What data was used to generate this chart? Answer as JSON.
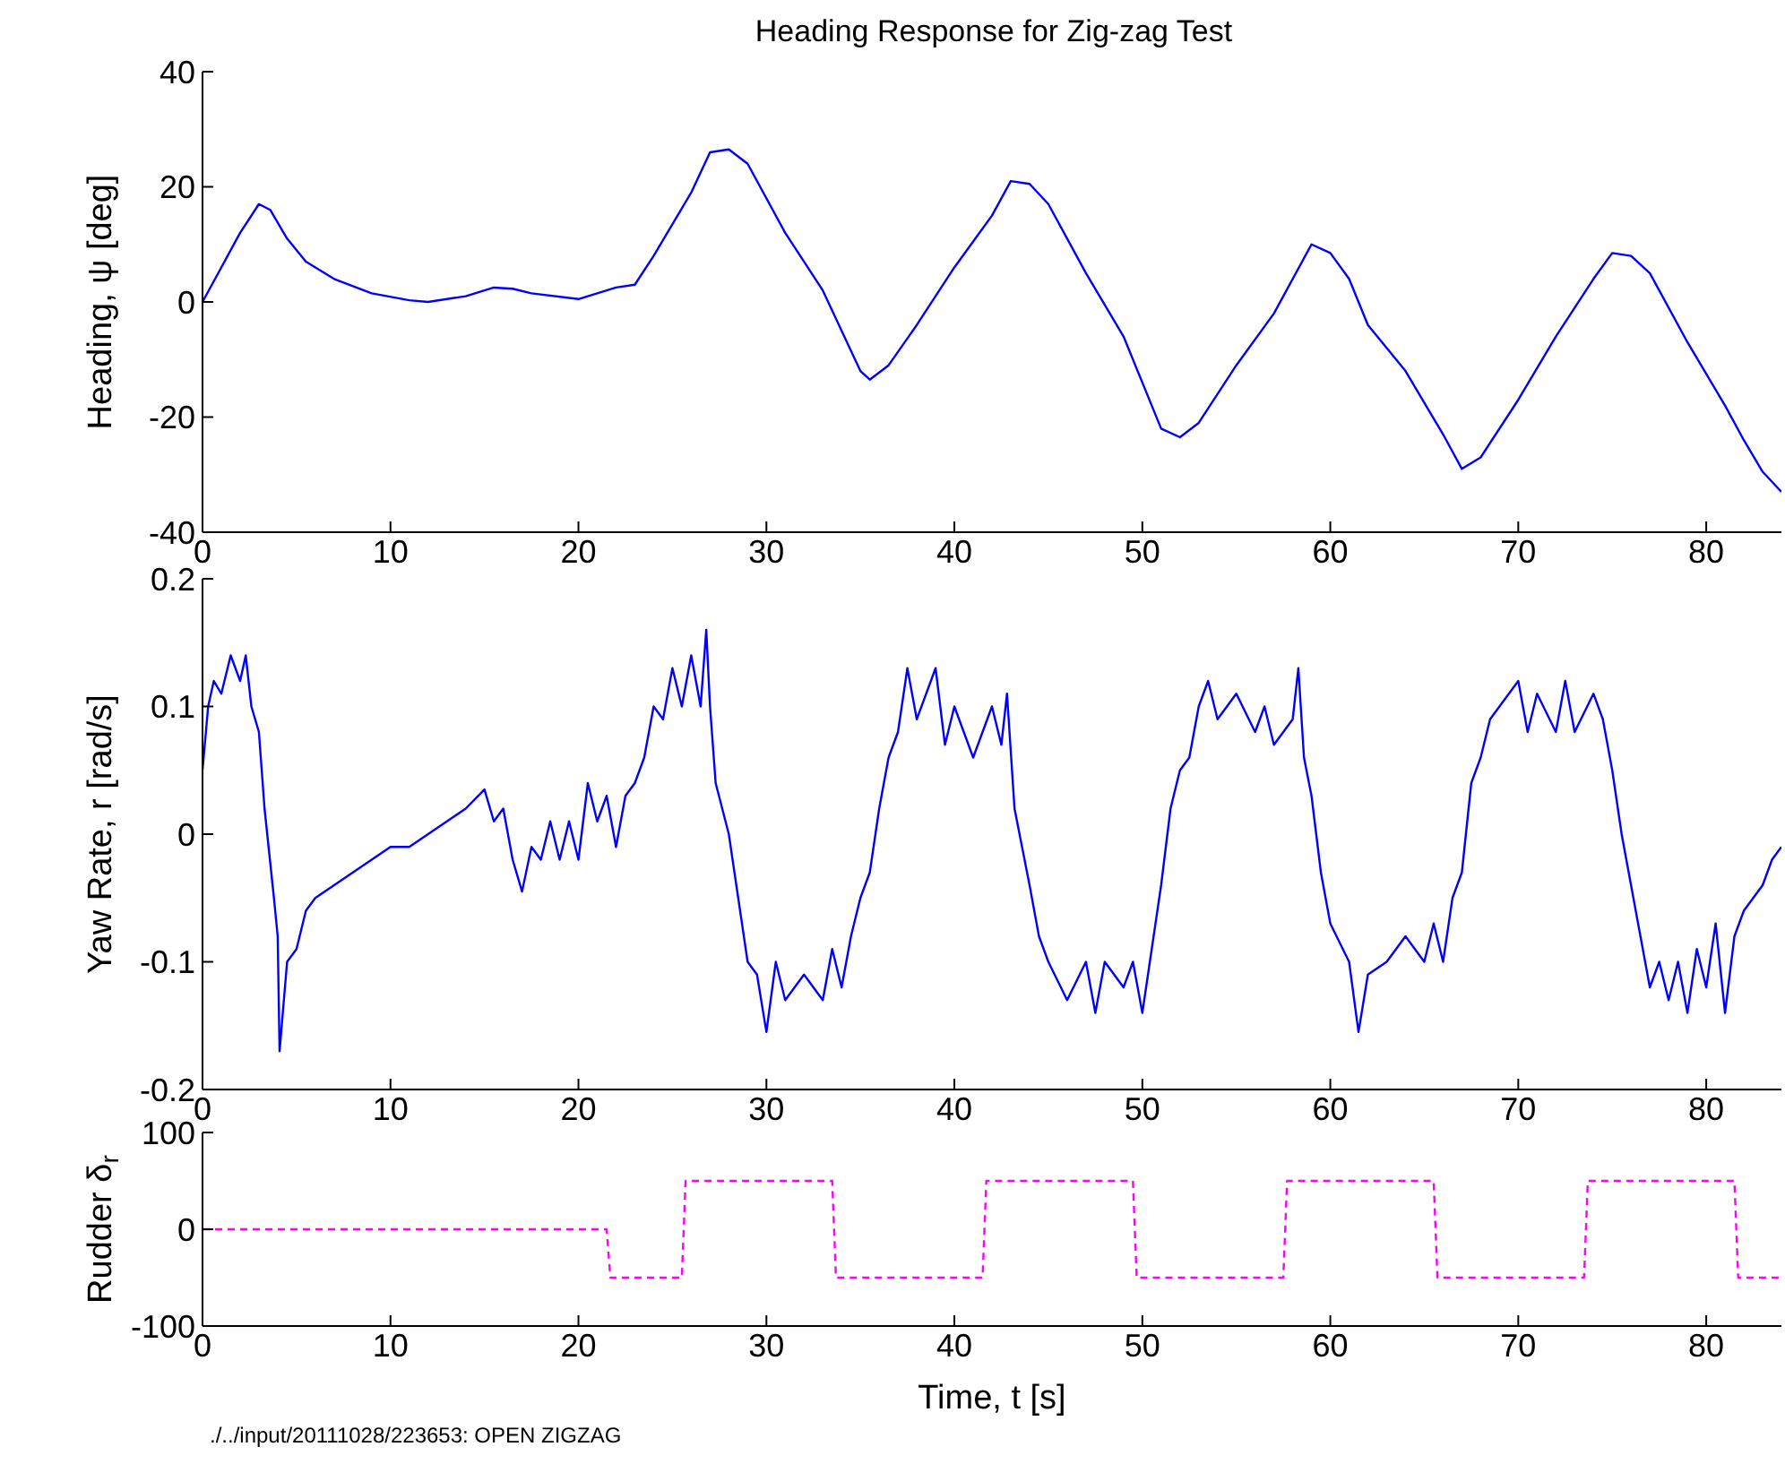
{
  "chart_data": [
    {
      "type": "line",
      "title": "Heading Response for Zig-zag Test",
      "ylabel": "Heading,  ψ [deg]",
      "xlim": [
        0,
        84
      ],
      "xticks": [
        0,
        10,
        20,
        30,
        40,
        50,
        60,
        70,
        80
      ],
      "ylim": [
        -40,
        40
      ],
      "yticks": [
        -40,
        -20,
        0,
        20,
        40
      ],
      "series": [
        {
          "color": "#0000ff",
          "x": [
            0,
            1,
            2,
            3,
            3.6,
            4.5,
            5.5,
            7,
            9,
            11,
            12,
            14,
            15.5,
            16.5,
            17.5,
            20,
            21,
            22,
            23,
            24,
            26,
            27,
            28,
            29,
            31,
            33,
            35,
            35.5,
            36.5,
            38,
            40,
            42,
            43,
            44,
            45,
            47,
            49,
            51,
            52,
            53,
            55,
            57,
            59,
            60,
            61,
            62,
            64,
            66,
            67,
            68,
            70,
            72,
            74,
            75,
            76,
            77,
            79,
            81,
            82,
            83,
            84
          ],
          "values": [
            0,
            6,
            12,
            17,
            16,
            11,
            7,
            4,
            1.5,
            0.3,
            0,
            1,
            2.5,
            2.3,
            1.5,
            0.5,
            1.5,
            2.5,
            3,
            8,
            19,
            26,
            26.5,
            24,
            12,
            2,
            -12,
            -13.5,
            -11,
            -4,
            6,
            15,
            21,
            20.5,
            17,
            5,
            -6,
            -22,
            -23.5,
            -21,
            -11,
            -2,
            10,
            8.5,
            4,
            -4,
            -12,
            -23,
            -29,
            -27,
            -17,
            -6,
            4,
            8.5,
            8,
            5,
            -7,
            -18,
            -24,
            -29.5,
            -33
          ]
        }
      ]
    },
    {
      "type": "line",
      "ylabel": "Yaw Rate,  r [rad/s]",
      "xlim": [
        0,
        84
      ],
      "xticks": [
        0,
        10,
        20,
        30,
        40,
        50,
        60,
        70,
        80
      ],
      "ylim": [
        -0.2,
        0.2
      ],
      "yticks": [
        -0.2,
        -0.1,
        0,
        0.1,
        0.2
      ],
      "series": [
        {
          "color": "#0000ff",
          "x": [
            0,
            0.3,
            0.6,
            1,
            1.5,
            2,
            2.3,
            2.6,
            3,
            3.3,
            3.8,
            4,
            4.1,
            4.5,
            5,
            5.5,
            6,
            7,
            8,
            9,
            10,
            11,
            12,
            13,
            14,
            15,
            15.5,
            16,
            16.5,
            17,
            17.5,
            18,
            18.5,
            19,
            19.5,
            20,
            20.5,
            21,
            21.5,
            22,
            22.5,
            23,
            23.5,
            24,
            24.5,
            25,
            25.5,
            26,
            26.5,
            26.8,
            27,
            27.3,
            28,
            28.5,
            29,
            29.5,
            30,
            30.5,
            31,
            32,
            33,
            33.5,
            34,
            34.5,
            35,
            35.5,
            36,
            36.5,
            37,
            37.5,
            38,
            39,
            39.5,
            40,
            41,
            42,
            42.5,
            42.8,
            43.2,
            44,
            44.5,
            45,
            46,
            47,
            47.5,
            48,
            49,
            49.5,
            50,
            50.5,
            51,
            51.5,
            52,
            52.5,
            53,
            53.5,
            54,
            55,
            56,
            56.5,
            57,
            58,
            58.3,
            58.6,
            59,
            59.5,
            60,
            61,
            61.5,
            62,
            63,
            64,
            65,
            65.5,
            66,
            66.5,
            67,
            67.5,
            68,
            68.5,
            69,
            70,
            70.5,
            71,
            72,
            72.5,
            73,
            74,
            74.5,
            75,
            75.5,
            76,
            76.5,
            77,
            77.5,
            78,
            78.5,
            79,
            79.5,
            80,
            80.5,
            81,
            81.5,
            82,
            82.5,
            83,
            83.5,
            84
          ],
          "values": [
            0.05,
            0.1,
            0.12,
            0.11,
            0.14,
            0.12,
            0.14,
            0.1,
            0.08,
            0.02,
            -0.05,
            -0.08,
            -0.17,
            -0.1,
            -0.09,
            -0.06,
            -0.05,
            -0.04,
            -0.03,
            -0.02,
            -0.01,
            -0.01,
            0,
            0.01,
            0.02,
            0.035,
            0.01,
            0.02,
            -0.02,
            -0.045,
            -0.01,
            -0.02,
            0.01,
            -0.02,
            0.01,
            -0.02,
            0.04,
            0.01,
            0.03,
            -0.01,
            0.03,
            0.04,
            0.06,
            0.1,
            0.09,
            0.13,
            0.1,
            0.14,
            0.1,
            0.16,
            0.1,
            0.04,
            0,
            -0.05,
            -0.1,
            -0.11,
            -0.155,
            -0.1,
            -0.13,
            -0.11,
            -0.13,
            -0.09,
            -0.12,
            -0.08,
            -0.05,
            -0.03,
            0.02,
            0.06,
            0.08,
            0.13,
            0.09,
            0.13,
            0.07,
            0.1,
            0.06,
            0.1,
            0.07,
            0.11,
            0.02,
            -0.04,
            -0.08,
            -0.1,
            -0.13,
            -0.1,
            -0.14,
            -0.1,
            -0.12,
            -0.1,
            -0.14,
            -0.09,
            -0.04,
            0.02,
            0.05,
            0.06,
            0.1,
            0.12,
            0.09,
            0.11,
            0.08,
            0.1,
            0.07,
            0.09,
            0.13,
            0.06,
            0.03,
            -0.03,
            -0.07,
            -0.1,
            -0.155,
            -0.11,
            -0.1,
            -0.08,
            -0.1,
            -0.07,
            -0.1,
            -0.05,
            -0.03,
            0.04,
            0.06,
            0.09,
            0.1,
            0.12,
            0.08,
            0.11,
            0.08,
            0.12,
            0.08,
            0.11,
            0.09,
            0.05,
            0,
            -0.04,
            -0.08,
            -0.12,
            -0.1,
            -0.13,
            -0.1,
            -0.14,
            -0.09,
            -0.12,
            -0.07,
            -0.14,
            -0.08,
            -0.06,
            -0.05,
            -0.04,
            -0.02,
            -0.01
          ]
        }
      ]
    },
    {
      "type": "line",
      "xlabel": "Time,  t  [s]",
      "ylabel": "Rudder δ$_{r}$",
      "xlim": [
        0,
        84
      ],
      "xticks": [
        0,
        10,
        20,
        30,
        40,
        50,
        60,
        70,
        80
      ],
      "ylim": [
        -100,
        100
      ],
      "yticks": [
        -100,
        0,
        100
      ],
      "annotations": [
        "./../input/20111028/223653: OPEN ZIGZAG"
      ],
      "series": [
        {
          "color": "#ff00ff",
          "line_style": "dashed",
          "x": [
            0,
            21.5,
            21.7,
            25.5,
            25.7,
            33.5,
            33.7,
            41.5,
            41.7,
            49.5,
            49.7,
            57.5,
            57.7,
            65.5,
            65.7,
            73.5,
            73.7,
            81.5,
            81.7,
            84
          ],
          "values": [
            0,
            0,
            -50,
            -50,
            50,
            50,
            -50,
            -50,
            50,
            50,
            -50,
            -50,
            50,
            50,
            -50,
            -50,
            50,
            50,
            -50,
            -50
          ]
        }
      ]
    }
  ]
}
